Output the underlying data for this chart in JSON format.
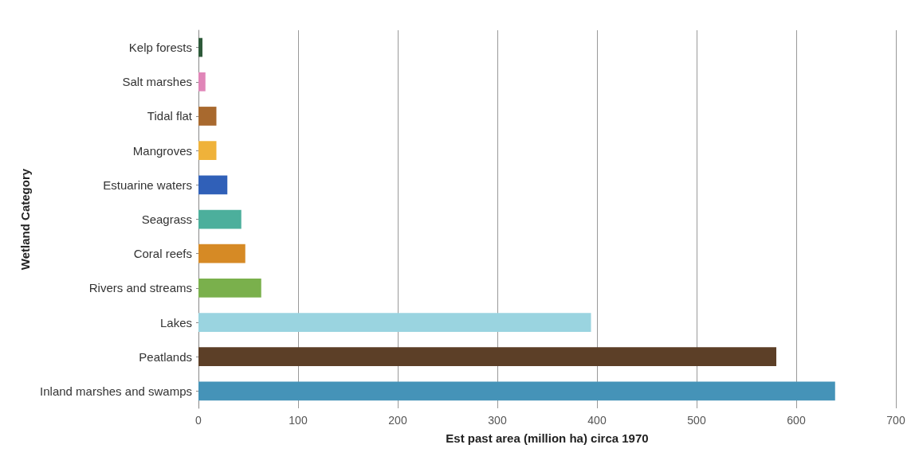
{
  "chart_data": {
    "type": "bar",
    "orientation": "horizontal",
    "xlabel": "Est past area (million ha) circa 1970",
    "ylabel": "Wetland Category",
    "categories": [
      "Kelp forests",
      "Salt marshes",
      "Tidal flat",
      "Mangroves",
      "Estuarine waters",
      "Seagrass",
      "Coral reefs",
      "Rivers and streams",
      "Lakes",
      "Peatlands",
      "Inland marshes and swamps"
    ],
    "values": [
      4,
      7,
      18,
      18,
      29,
      43,
      47,
      63,
      394,
      580,
      639
    ],
    "colors": [
      "#2e5a3a",
      "#e086b8",
      "#a8692e",
      "#efb23a",
      "#3060b8",
      "#4caf9c",
      "#d68a25",
      "#7ab04c",
      "#9ad4e0",
      "#5c3f27",
      "#4593b8"
    ],
    "xlim": [
      0,
      700
    ],
    "xticks": [
      0,
      100,
      200,
      300,
      400,
      500,
      600,
      700
    ],
    "grid": "x"
  }
}
